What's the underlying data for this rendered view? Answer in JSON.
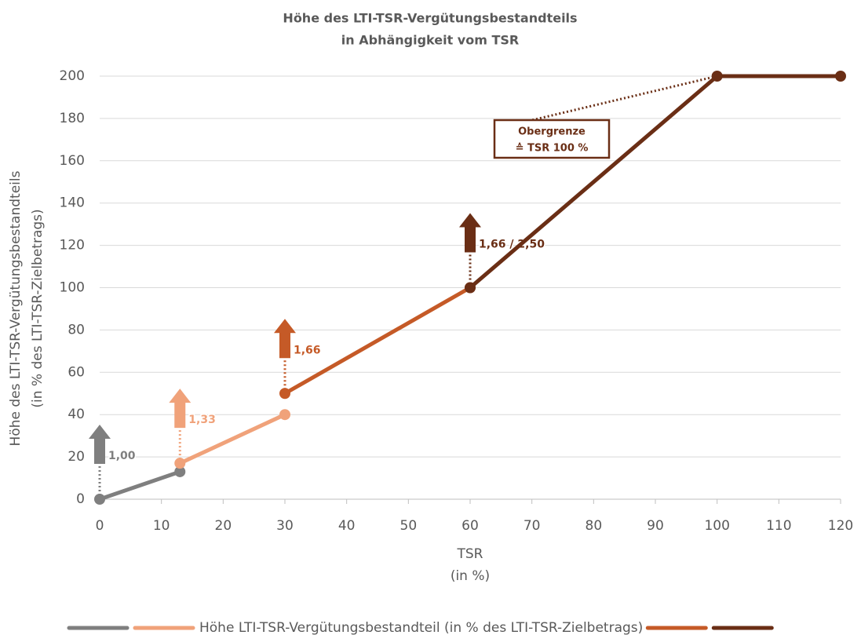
{
  "chart_data": {
    "type": "line",
    "title": [
      "Höhe des LTI-TSR-Vergütungsbestandteils",
      "in Abhängigkeit vom TSR"
    ],
    "x_label": [
      "TSR",
      "(in %)"
    ],
    "y_label": [
      "Höhe des LTI-TSR-Vergütungsbestandteils",
      "(in % des LTI-TSR-Zielbetrags)"
    ],
    "xlim": [
      0,
      120
    ],
    "xticks": [
      0,
      10,
      20,
      30,
      40,
      50,
      60,
      70,
      80,
      90,
      100,
      110,
      120
    ],
    "ylim": [
      0,
      200
    ],
    "yticks": [
      0,
      20,
      40,
      60,
      80,
      100,
      120,
      140,
      160,
      180,
      200
    ],
    "grid": true,
    "legend_label": "Höhe LTI-TSR-Vergütungsbestandteil (in % des LTI-TSR-Zielbetrags)",
    "series": [
      {
        "color": "#7f7f7f",
        "x": [
          0,
          13
        ],
        "values": [
          0,
          13
        ]
      },
      {
        "color": "#f0a27a",
        "x": [
          13,
          30
        ],
        "values": [
          17,
          40
        ]
      },
      {
        "color": "#c55a27",
        "x": [
          30,
          60
        ],
        "values": [
          50,
          100
        ]
      },
      {
        "color": "#6a2e15",
        "x": [
          60,
          100,
          120
        ],
        "values": [
          100,
          200,
          200
        ]
      }
    ],
    "annotations": [
      {
        "text": "1,00",
        "color": "#7f7f7f",
        "at": [
          0,
          0
        ]
      },
      {
        "text": "1,33",
        "color": "#f0a27a",
        "at": [
          13,
          17
        ]
      },
      {
        "text": "1,66",
        "color": "#c55a27",
        "at": [
          30,
          50
        ]
      },
      {
        "text": "1,66 / 2,50",
        "color": "#6a2e15",
        "at": [
          60,
          100
        ]
      }
    ],
    "callout": {
      "lines": [
        "Obergrenze",
        "≙ TSR 100 %"
      ],
      "color": "#6a2e15",
      "at": [
        100,
        200
      ]
    }
  }
}
